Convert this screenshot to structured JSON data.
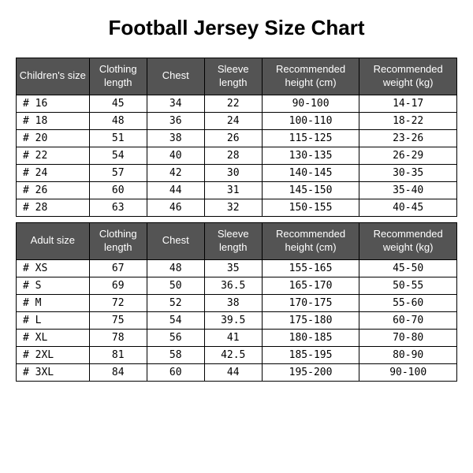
{
  "title": "Football Jersey Size Chart",
  "tables": [
    {
      "headers": {
        "size": "Children's size",
        "clothing": "Clothing length",
        "chest": "Chest",
        "sleeve": "Sleeve length",
        "height": "Recommended height (cm)",
        "weight": "Recommended weight (kg)"
      },
      "rows": [
        {
          "size": "# 16",
          "clothing": "45",
          "chest": "34",
          "sleeve": "22",
          "height": "90-100",
          "weight": "14-17"
        },
        {
          "size": "# 18",
          "clothing": "48",
          "chest": "36",
          "sleeve": "24",
          "height": "100-110",
          "weight": "18-22"
        },
        {
          "size": "# 20",
          "clothing": "51",
          "chest": "38",
          "sleeve": "26",
          "height": "115-125",
          "weight": "23-26"
        },
        {
          "size": "# 22",
          "clothing": "54",
          "chest": "40",
          "sleeve": "28",
          "height": "130-135",
          "weight": "26-29"
        },
        {
          "size": "# 24",
          "clothing": "57",
          "chest": "42",
          "sleeve": "30",
          "height": "140-145",
          "weight": "30-35"
        },
        {
          "size": "# 26",
          "clothing": "60",
          "chest": "44",
          "sleeve": "31",
          "height": "145-150",
          "weight": "35-40"
        },
        {
          "size": "# 28",
          "clothing": "63",
          "chest": "46",
          "sleeve": "32",
          "height": "150-155",
          "weight": "40-45"
        }
      ]
    },
    {
      "headers": {
        "size": "Adult size",
        "clothing": "Clothing length",
        "chest": "Chest",
        "sleeve": "Sleeve length",
        "height": "Recommended height (cm)",
        "weight": "Recommended weight (kg)"
      },
      "rows": [
        {
          "size": "# XS",
          "clothing": "67",
          "chest": "48",
          "sleeve": "35",
          "height": "155-165",
          "weight": "45-50"
        },
        {
          "size": "# S",
          "clothing": "69",
          "chest": "50",
          "sleeve": "36.5",
          "height": "165-170",
          "weight": "50-55"
        },
        {
          "size": "# M",
          "clothing": "72",
          "chest": "52",
          "sleeve": "38",
          "height": "170-175",
          "weight": "55-60"
        },
        {
          "size": "# L",
          "clothing": "75",
          "chest": "54",
          "sleeve": "39.5",
          "height": "175-180",
          "weight": "60-70"
        },
        {
          "size": "# XL",
          "clothing": "78",
          "chest": "56",
          "sleeve": "41",
          "height": "180-185",
          "weight": "70-80"
        },
        {
          "size": "# 2XL",
          "clothing": "81",
          "chest": "58",
          "sleeve": "42.5",
          "height": "185-195",
          "weight": "80-90"
        },
        {
          "size": "# 3XL",
          "clothing": "84",
          "chest": "60",
          "sleeve": "44",
          "height": "195-200",
          "weight": "90-100"
        }
      ]
    }
  ],
  "style": {
    "header_bg": "#545454",
    "header_fg": "#ffffff",
    "cell_bg": "#ffffff",
    "cell_fg": "#000000",
    "border_color": "#000000",
    "title_fontsize": 26,
    "header_fontsize": 13,
    "cell_fontsize": 13,
    "row_font": "monospace"
  }
}
